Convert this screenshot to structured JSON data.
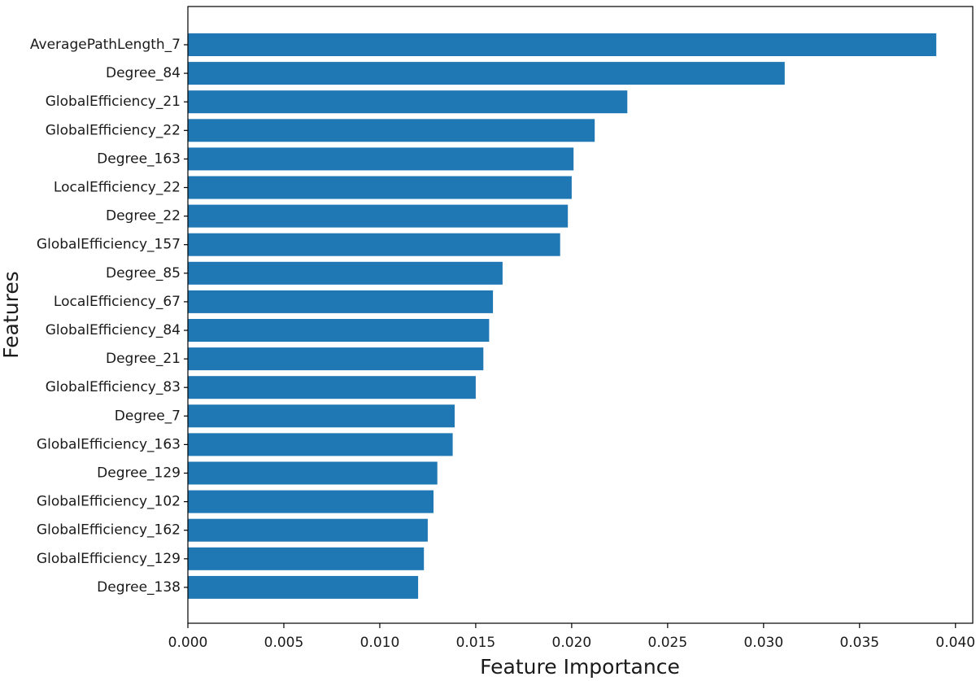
{
  "chart_data": {
    "type": "bar",
    "orientation": "horizontal",
    "title": "",
    "xlabel": "Feature Importance",
    "ylabel": "Features",
    "xlim": [
      0.0,
      0.0409
    ],
    "xticks": [
      "0.000",
      "0.005",
      "0.010",
      "0.015",
      "0.020",
      "0.025",
      "0.030",
      "0.035",
      "0.040"
    ],
    "xtick_values": [
      0.0,
      0.005,
      0.01,
      0.015,
      0.02,
      0.025,
      0.03,
      0.035,
      0.04
    ],
    "grid": false,
    "bar_color": "#1f77b4",
    "categories": [
      "AveragePathLength_7",
      "Degree_84",
      "GlobalEfficiency_21",
      "GlobalEfficiency_22",
      "Degree_163",
      "LocalEfficiency_22",
      "Degree_22",
      "GlobalEfficiency_157",
      "Degree_85",
      "LocalEfficiency_67",
      "GlobalEfficiency_84",
      "Degree_21",
      "GlobalEfficiency_83",
      "Degree_7",
      "GlobalEfficiency_163",
      "Degree_129",
      "GlobalEfficiency_102",
      "GlobalEfficiency_162",
      "GlobalEfficiency_129",
      "Degree_138"
    ],
    "values": [
      0.039,
      0.0311,
      0.0229,
      0.0212,
      0.0201,
      0.02,
      0.0198,
      0.0194,
      0.0164,
      0.0159,
      0.0157,
      0.0154,
      0.015,
      0.0139,
      0.0138,
      0.013,
      0.0128,
      0.0125,
      0.0123,
      0.012
    ]
  }
}
